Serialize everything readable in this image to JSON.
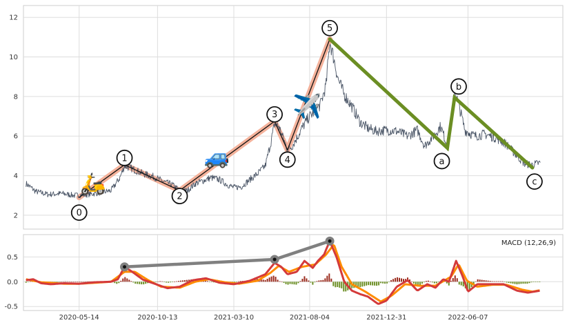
{
  "chart_data": [
    {
      "type": "line",
      "panel": "price",
      "x_dates": [
        "2020-05-14",
        "2020-10-13",
        "2021-03-10",
        "2021-08-04",
        "2021-12-31",
        "2022-06-07"
      ],
      "xlim_dates": [
        "2020-01-27",
        "2022-12-08"
      ],
      "ylim": [
        1.3,
        12.6
      ],
      "yticks": [
        2,
        4,
        6,
        8,
        10,
        12
      ],
      "grid": true,
      "price_series": [
        [
          "2020-02-01",
          3.6
        ],
        [
          "2020-02-20",
          3.2
        ],
        [
          "2020-03-15",
          3.05
        ],
        [
          "2020-04-10",
          3.1
        ],
        [
          "2020-05-05",
          3.0
        ],
        [
          "2020-06-01",
          3.05
        ],
        [
          "2020-06-25",
          3.15
        ],
        [
          "2020-07-15",
          3.25
        ],
        [
          "2020-08-01",
          3.9
        ],
        [
          "2020-08-10",
          4.5
        ],
        [
          "2020-08-25",
          4.35
        ],
        [
          "2020-09-15",
          4.1
        ],
        [
          "2020-10-05",
          3.95
        ],
        [
          "2020-10-25",
          3.7
        ],
        [
          "2020-11-10",
          3.55
        ],
        [
          "2020-11-25",
          3.25
        ],
        [
          "2020-12-10",
          3.25
        ],
        [
          "2020-12-25",
          3.6
        ],
        [
          "2021-01-10",
          3.75
        ],
        [
          "2021-01-25",
          3.9
        ],
        [
          "2021-02-10",
          3.8
        ],
        [
          "2021-02-25",
          3.55
        ],
        [
          "2021-03-10",
          3.4
        ],
        [
          "2021-03-25",
          3.45
        ],
        [
          "2021-04-10",
          3.8
        ],
        [
          "2021-04-25",
          4.1
        ],
        [
          "2021-05-10",
          4.5
        ],
        [
          "2021-05-20",
          5.6
        ],
        [
          "2021-05-28",
          6.6
        ],
        [
          "2021-06-05",
          6.5
        ],
        [
          "2021-06-15",
          5.8
        ],
        [
          "2021-06-22",
          5.3
        ],
        [
          "2021-07-01",
          5.5
        ],
        [
          "2021-07-10",
          5.9
        ],
        [
          "2021-07-20",
          6.4
        ],
        [
          "2021-08-01",
          6.9
        ],
        [
          "2021-08-15",
          7.3
        ],
        [
          "2021-08-25",
          7.6
        ],
        [
          "2021-09-05",
          8.6
        ],
        [
          "2021-09-12",
          10.8
        ],
        [
          "2021-09-20",
          9.9
        ],
        [
          "2021-09-28",
          8.9
        ],
        [
          "2021-10-10",
          8.1
        ],
        [
          "2021-10-25",
          7.5
        ],
        [
          "2021-11-10",
          6.7
        ],
        [
          "2021-11-25",
          6.4
        ],
        [
          "2021-12-10",
          6.25
        ],
        [
          "2021-12-31",
          6.3
        ],
        [
          "2022-01-20",
          6.25
        ],
        [
          "2022-02-10",
          6.0
        ],
        [
          "2022-03-01",
          6.3
        ],
        [
          "2022-03-15",
          5.5
        ],
        [
          "2022-04-01",
          6.0
        ],
        [
          "2022-04-15",
          6.5
        ],
        [
          "2022-04-28",
          5.5
        ],
        [
          "2022-05-05",
          6.8
        ],
        [
          "2022-05-12",
          8.3
        ],
        [
          "2022-05-22",
          7.4
        ],
        [
          "2022-06-01",
          6.3
        ],
        [
          "2022-06-20",
          6.0
        ],
        [
          "2022-07-10",
          6.1
        ],
        [
          "2022-08-01",
          5.9
        ],
        [
          "2022-08-20",
          5.6
        ],
        [
          "2022-09-10",
          5.0
        ],
        [
          "2022-09-25",
          4.6
        ],
        [
          "2022-10-10",
          4.55
        ],
        [
          "2022-10-25",
          4.65
        ]
      ],
      "wave_points": [
        {
          "label": "0",
          "date": "2020-05-14",
          "value": 2.9
        },
        {
          "label": "1",
          "date": "2020-08-10",
          "value": 4.55
        },
        {
          "label": "2",
          "date": "2020-11-25",
          "value": 3.25
        },
        {
          "label": "3",
          "date": "2021-05-28",
          "value": 6.75
        },
        {
          "label": "4",
          "date": "2021-06-22",
          "value": 5.3
        },
        {
          "label": "5",
          "date": "2021-09-12",
          "value": 10.9
        },
        {
          "label": "a",
          "date": "2022-04-28",
          "value": 5.4
        },
        {
          "label": "b",
          "date": "2022-05-12",
          "value": 7.95
        },
        {
          "label": "c",
          "date": "2022-10-10",
          "value": 4.4
        }
      ],
      "impulse_segment": [
        "0",
        "1",
        "2",
        "3",
        "4",
        "5"
      ],
      "correction_segment": [
        "5",
        "a",
        "b",
        "c"
      ],
      "emoji_annotations": [
        {
          "emoji": "🛵",
          "date": "2020-06-10",
          "value": 3.6
        },
        {
          "emoji": "🚙",
          "date": "2021-02-05",
          "value": 4.95
        },
        {
          "emoji": "✈️",
          "date": "2021-07-30",
          "value": 7.45
        }
      ],
      "colors": {
        "price": "#4a5566",
        "impulse_highlight": "#f2a58a",
        "impulse_line": "#111111",
        "correction": "#6b8e23"
      }
    },
    {
      "type": "line",
      "panel": "macd",
      "title": "MACD (12,26,9)",
      "ylim": [
        -0.58,
        0.95
      ],
      "yticks": [
        -0.5,
        0.0,
        0.5
      ],
      "ytick_labels": [
        "-0.5",
        "0.0",
        "0.5"
      ],
      "grid": true,
      "legend": "top-right",
      "macd_series": [
        [
          "2020-02-01",
          0.03
        ],
        [
          "2020-02-15",
          0.05
        ],
        [
          "2020-03-01",
          -0.03
        ],
        [
          "2020-03-20",
          -0.05
        ],
        [
          "2020-04-15",
          -0.03
        ],
        [
          "2020-05-14",
          -0.04
        ],
        [
          "2020-06-15",
          -0.01
        ],
        [
          "2020-07-15",
          0.0
        ],
        [
          "2020-07-28",
          0.05
        ],
        [
          "2020-08-10",
          0.3
        ],
        [
          "2020-08-25",
          0.2
        ],
        [
          "2020-09-15",
          0.04
        ],
        [
          "2020-10-13",
          -0.06
        ],
        [
          "2020-11-01",
          -0.13
        ],
        [
          "2020-11-25",
          -0.1
        ],
        [
          "2020-12-20",
          0.03
        ],
        [
          "2021-01-15",
          0.07
        ],
        [
          "2021-02-10",
          -0.02
        ],
        [
          "2021-03-10",
          -0.05
        ],
        [
          "2021-04-10",
          0.02
        ],
        [
          "2021-05-10",
          0.15
        ],
        [
          "2021-05-28",
          0.38
        ],
        [
          "2021-06-10",
          0.3
        ],
        [
          "2021-06-22",
          0.15
        ],
        [
          "2021-07-10",
          0.2
        ],
        [
          "2021-07-25",
          0.42
        ],
        [
          "2021-08-10",
          0.28
        ],
        [
          "2021-08-20",
          0.42
        ],
        [
          "2021-09-01",
          0.55
        ],
        [
          "2021-09-12",
          0.82
        ],
        [
          "2021-09-25",
          0.5
        ],
        [
          "2021-10-10",
          0.0
        ],
        [
          "2021-10-25",
          -0.18
        ],
        [
          "2021-11-10",
          -0.25
        ],
        [
          "2021-11-25",
          -0.3
        ],
        [
          "2021-12-15",
          -0.45
        ],
        [
          "2021-12-31",
          -0.38
        ],
        [
          "2022-01-20",
          -0.1
        ],
        [
          "2022-02-10",
          0.03
        ],
        [
          "2022-03-01",
          -0.18
        ],
        [
          "2022-03-20",
          -0.05
        ],
        [
          "2022-04-05",
          -0.12
        ],
        [
          "2022-04-20",
          0.05
        ],
        [
          "2022-05-01",
          0.0
        ],
        [
          "2022-05-15",
          0.42
        ],
        [
          "2022-05-28",
          0.1
        ],
        [
          "2022-06-07",
          -0.2
        ],
        [
          "2022-06-25",
          -0.05
        ],
        [
          "2022-07-20",
          -0.05
        ],
        [
          "2022-08-15",
          -0.05
        ],
        [
          "2022-09-10",
          -0.18
        ],
        [
          "2022-10-01",
          -0.22
        ],
        [
          "2022-10-25",
          -0.18
        ]
      ],
      "signal_series": [
        [
          "2020-02-01",
          0.05
        ],
        [
          "2020-03-01",
          -0.01
        ],
        [
          "2020-04-15",
          -0.04
        ],
        [
          "2020-05-14",
          -0.04
        ],
        [
          "2020-06-15",
          -0.02
        ],
        [
          "2020-07-15",
          0.0
        ],
        [
          "2020-08-10",
          0.2
        ],
        [
          "2020-08-30",
          0.2
        ],
        [
          "2020-09-25",
          0.03
        ],
        [
          "2020-10-20",
          -0.1
        ],
        [
          "2020-11-25",
          -0.12
        ],
        [
          "2020-12-25",
          0.0
        ],
        [
          "2021-01-20",
          0.05
        ],
        [
          "2021-02-20",
          -0.01
        ],
        [
          "2021-03-20",
          -0.04
        ],
        [
          "2021-04-25",
          0.02
        ],
        [
          "2021-05-20",
          0.18
        ],
        [
          "2021-06-05",
          0.32
        ],
        [
          "2021-06-25",
          0.2
        ],
        [
          "2021-07-20",
          0.3
        ],
        [
          "2021-08-15",
          0.35
        ],
        [
          "2021-09-05",
          0.55
        ],
        [
          "2021-09-20",
          0.75
        ],
        [
          "2021-10-05",
          0.3
        ],
        [
          "2021-10-25",
          -0.05
        ],
        [
          "2021-11-20",
          -0.2
        ],
        [
          "2021-12-20",
          -0.4
        ],
        [
          "2022-01-10",
          -0.28
        ],
        [
          "2022-02-05",
          -0.05
        ],
        [
          "2022-03-05",
          -0.08
        ],
        [
          "2022-04-05",
          -0.08
        ],
        [
          "2022-05-05",
          0.1
        ],
        [
          "2022-05-20",
          0.35
        ],
        [
          "2022-06-05",
          0.02
        ],
        [
          "2022-06-25",
          -0.1
        ],
        [
          "2022-07-25",
          -0.06
        ],
        [
          "2022-08-20",
          -0.06
        ],
        [
          "2022-09-20",
          -0.16
        ],
        [
          "2022-10-10",
          -0.2
        ],
        [
          "2022-10-25",
          -0.17
        ]
      ],
      "divergence_points": [
        {
          "date": "2020-08-10",
          "value": 0.3
        },
        {
          "date": "2021-05-28",
          "value": 0.45
        },
        {
          "date": "2021-09-12",
          "value": 0.82
        }
      ],
      "colors": {
        "macd": "#d43a3a",
        "signal": "#ff8c00",
        "hist_positive": "#9b2c1e",
        "hist_negative": "#6b8e23",
        "divergence": "#808080"
      }
    }
  ]
}
